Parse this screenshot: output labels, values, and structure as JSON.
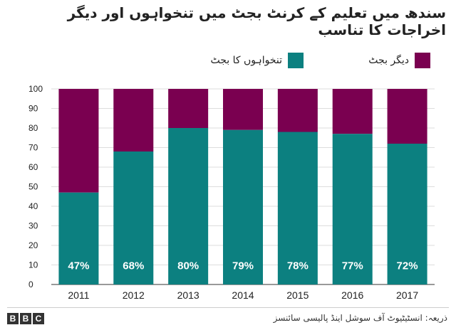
{
  "title": "سندھ میں تعلیم کے کرنٹ بجٹ میں تنخواہوں اور دیگر اخراجات کا تناسب",
  "legend": {
    "salary_label": "تنخواہوں کا بجٹ",
    "other_label": "دیگر بجٹ"
  },
  "colors": {
    "salary": "#0c8080",
    "other": "#7a0050",
    "grid": "#dddddd",
    "axis": "#333333"
  },
  "footer": {
    "source": "ذریعہ: انسٹیٹیوٹ آف سوشل اینڈ پالیسی سائنسز",
    "logo_letters": [
      "B",
      "B",
      "C"
    ]
  },
  "chart_data": {
    "type": "bar",
    "stacked": true,
    "categories": [
      "2011",
      "2012",
      "2013",
      "2014",
      "2015",
      "2016",
      "2017"
    ],
    "series": [
      {
        "name": "تنخواہوں کا بجٹ",
        "values": [
          47,
          68,
          80,
          79,
          78,
          77,
          72
        ]
      },
      {
        "name": "دیگر بجٹ",
        "values": [
          53,
          32,
          20,
          21,
          22,
          23,
          28
        ]
      }
    ],
    "data_labels": [
      "47%",
      "68%",
      "80%",
      "79%",
      "78%",
      "77%",
      "72%"
    ],
    "ylim": [
      0,
      100
    ],
    "yticks": [
      "0",
      "10",
      "20",
      "30",
      "40",
      "50",
      "60",
      "70",
      "80",
      "90",
      "100"
    ],
    "grid": true,
    "legend_position": "top-right"
  }
}
